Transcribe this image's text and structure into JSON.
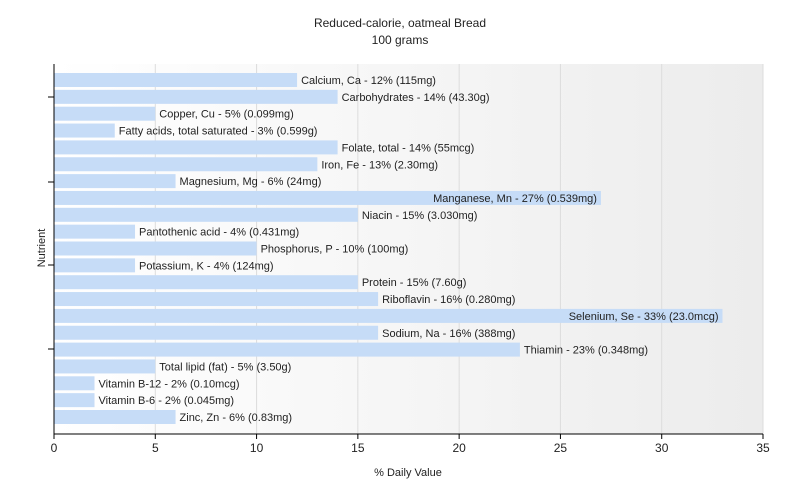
{
  "chart_data": {
    "type": "bar",
    "orientation": "horizontal",
    "title": "Reduced-calorie, oatmeal Bread",
    "subtitle": "100 grams",
    "xlabel": "% Daily Value",
    "ylabel": "Nutrient",
    "xlim": [
      0,
      35
    ],
    "xticks": [
      0,
      5,
      10,
      15,
      20,
      25,
      30,
      35
    ],
    "grid": false,
    "bar_color": "#c6dcf7",
    "categories": [
      "Calcium, Ca - 12% (115mg)",
      "Carbohydrates - 14% (43.30g)",
      "Copper, Cu - 5% (0.099mg)",
      "Fatty acids, total saturated - 3% (0.599g)",
      "Folate, total - 14% (55mcg)",
      "Iron, Fe - 13% (2.30mg)",
      "Magnesium, Mg - 6% (24mg)",
      "Manganese, Mn - 27% (0.539mg)",
      "Niacin - 15% (3.030mg)",
      "Pantothenic acid - 4% (0.431mg)",
      "Phosphorus, P - 10% (100mg)",
      "Potassium, K - 4% (124mg)",
      "Protein - 15% (7.60g)",
      "Riboflavin - 16% (0.280mg)",
      "Selenium, Se - 33% (23.0mcg)",
      "Sodium, Na - 16% (388mg)",
      "Thiamin - 23% (0.348mg)",
      "Total lipid (fat) - 5% (3.50g)",
      "Vitamin B-12 - 2% (0.10mcg)",
      "Vitamin B-6 - 2% (0.045mg)",
      "Zinc, Zn - 6% (0.83mg)"
    ],
    "values": [
      12,
      14,
      5,
      3,
      14,
      13,
      6,
      27,
      15,
      4,
      10,
      4,
      15,
      16,
      33,
      16,
      23,
      5,
      2,
      2,
      6
    ]
  }
}
